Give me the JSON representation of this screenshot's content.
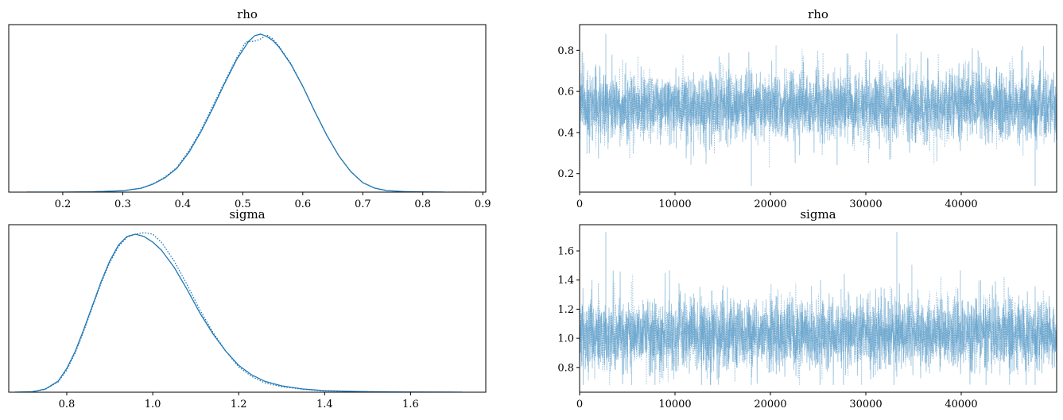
{
  "chart_data": [
    {
      "type": "line",
      "title": "rho",
      "xlabel": "",
      "ylabel": "",
      "xlim": [
        0.11,
        0.905
      ],
      "ylim": [
        0.0,
        1.06
      ],
      "x_ticks": [
        "0.2",
        "0.3",
        "0.4",
        "0.5",
        "0.6",
        "0.7",
        "0.8",
        "0.9"
      ],
      "y_ticks": [],
      "grid": false,
      "series": [
        {
          "line_style": "solid",
          "x": [
            0.14,
            0.2,
            0.25,
            0.3,
            0.33,
            0.35,
            0.37,
            0.39,
            0.41,
            0.43,
            0.45,
            0.47,
            0.49,
            0.51,
            0.52,
            0.53,
            0.54,
            0.55,
            0.56,
            0.58,
            0.6,
            0.62,
            0.64,
            0.66,
            0.68,
            0.7,
            0.72,
            0.74,
            0.77,
            0.8,
            0.835
          ],
          "y": [
            0.0,
            0.0,
            0.002,
            0.009,
            0.024,
            0.05,
            0.09,
            0.15,
            0.25,
            0.38,
            0.53,
            0.69,
            0.84,
            0.955,
            0.99,
            1.0,
            0.985,
            0.96,
            0.92,
            0.81,
            0.67,
            0.51,
            0.36,
            0.23,
            0.13,
            0.06,
            0.025,
            0.01,
            0.003,
            0.001,
            0.0
          ]
        },
        {
          "line_style": "dotted",
          "x": [
            0.14,
            0.2,
            0.25,
            0.3,
            0.33,
            0.35,
            0.37,
            0.39,
            0.41,
            0.43,
            0.45,
            0.47,
            0.49,
            0.505,
            0.52,
            0.53,
            0.54,
            0.55,
            0.56,
            0.58,
            0.6,
            0.62,
            0.64,
            0.66,
            0.68,
            0.7,
            0.72,
            0.74,
            0.77,
            0.8,
            0.84,
            0.88
          ],
          "y": [
            0.0,
            0.0,
            0.002,
            0.009,
            0.025,
            0.052,
            0.095,
            0.155,
            0.26,
            0.39,
            0.545,
            0.7,
            0.85,
            0.95,
            0.955,
            0.97,
            0.995,
            0.97,
            0.925,
            0.815,
            0.67,
            0.51,
            0.36,
            0.23,
            0.13,
            0.06,
            0.025,
            0.01,
            0.003,
            0.001,
            0.0,
            0.0
          ]
        }
      ]
    },
    {
      "type": "line",
      "title": "rho",
      "xlabel": "",
      "ylabel": "",
      "xlim": [
        0,
        49999
      ],
      "ylim": [
        0.11,
        0.925
      ],
      "x_ticks": [
        "0",
        "10000",
        "20000",
        "30000",
        "40000"
      ],
      "y_ticks": [
        "0.2",
        "0.4",
        "0.6",
        "0.8"
      ],
      "grid": false,
      "draws_per_chain": 50000,
      "trace_summary": {
        "mean": 0.53,
        "sd": 0.08,
        "min": 0.14,
        "max": 0.88
      },
      "series": [
        {
          "line_style": "solid",
          "color": "#1f77b4",
          "alpha": 0.4
        },
        {
          "line_style": "dotted",
          "color": "#1f77b4",
          "alpha": 0.4
        }
      ]
    },
    {
      "type": "line",
      "title": "sigma",
      "xlabel": "",
      "ylabel": "",
      "xlim": [
        0.665,
        1.775
      ],
      "ylim": [
        0.0,
        1.06
      ],
      "x_ticks": [
        "0.8",
        "1.0",
        "1.2",
        "1.4",
        "1.6"
      ],
      "y_ticks": [],
      "grid": false,
      "series": [
        {
          "line_style": "solid",
          "x": [
            0.68,
            0.72,
            0.75,
            0.78,
            0.8,
            0.82,
            0.84,
            0.86,
            0.88,
            0.9,
            0.92,
            0.94,
            0.96,
            0.98,
            1.0,
            1.02,
            1.05,
            1.08,
            1.11,
            1.14,
            1.17,
            1.2,
            1.23,
            1.26,
            1.3,
            1.35,
            1.4,
            1.5,
            1.6,
            1.72
          ],
          "y": [
            0.0,
            0.003,
            0.02,
            0.07,
            0.15,
            0.26,
            0.4,
            0.55,
            0.7,
            0.83,
            0.93,
            0.985,
            1.0,
            0.985,
            0.95,
            0.9,
            0.79,
            0.65,
            0.5,
            0.37,
            0.26,
            0.17,
            0.11,
            0.07,
            0.04,
            0.02,
            0.01,
            0.003,
            0.001,
            0.0
          ]
        },
        {
          "line_style": "dotted",
          "x": [
            0.68,
            0.72,
            0.75,
            0.78,
            0.8,
            0.82,
            0.84,
            0.86,
            0.88,
            0.9,
            0.92,
            0.94,
            0.96,
            0.98,
            1.0,
            1.02,
            1.05,
            1.08,
            1.11,
            1.14,
            1.17,
            1.2,
            1.23,
            1.26,
            1.3,
            1.35,
            1.4,
            1.5,
            1.6,
            1.72
          ],
          "y": [
            0.0,
            0.003,
            0.018,
            0.065,
            0.14,
            0.25,
            0.39,
            0.54,
            0.69,
            0.82,
            0.92,
            0.98,
            1.0,
            1.01,
            1.0,
            0.95,
            0.83,
            0.68,
            0.52,
            0.38,
            0.26,
            0.16,
            0.1,
            0.06,
            0.035,
            0.018,
            0.008,
            0.003,
            0.001,
            0.0
          ]
        }
      ]
    },
    {
      "type": "line",
      "title": "sigma",
      "xlabel": "",
      "ylabel": "",
      "xlim": [
        0,
        49999
      ],
      "ylim": [
        0.63,
        1.78
      ],
      "x_ticks": [
        "0",
        "10000",
        "20000",
        "30000",
        "40000"
      ],
      "y_ticks": [
        "0.8",
        "1.0",
        "1.2",
        "1.4",
        "1.6"
      ],
      "grid": false,
      "draws_per_chain": 50000,
      "trace_summary": {
        "mean": 1.03,
        "sd": 0.12,
        "min": 0.68,
        "max": 1.73
      },
      "series": [
        {
          "line_style": "solid",
          "color": "#1f77b4",
          "alpha": 0.4
        },
        {
          "line_style": "dotted",
          "color": "#1f77b4",
          "alpha": 0.4
        }
      ]
    }
  ],
  "colors": {
    "line": "#1f77b4",
    "trace_fill": "#7fafd3",
    "axes": "#000000",
    "background": "#ffffff"
  }
}
